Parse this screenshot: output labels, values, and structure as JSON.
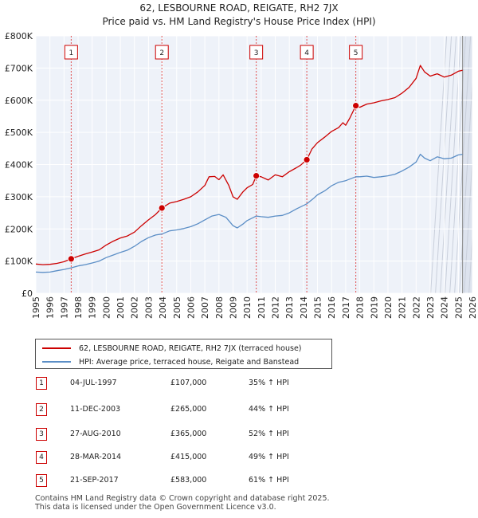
{
  "chart_data": {
    "type": "line",
    "title": "62, LESBOURNE ROAD, REIGATE, RH2 7JX",
    "subtitle": "Price paid vs. HM Land Registry's House Price Index (HPI)",
    "xlim": [
      1995,
      2026
    ],
    "ylim": [
      0,
      800000
    ],
    "x_ticks": [
      "1995",
      "1996",
      "1997",
      "1998",
      "1999",
      "2000",
      "2001",
      "2002",
      "2003",
      "2004",
      "2005",
      "2006",
      "2007",
      "2008",
      "2009",
      "2010",
      "2011",
      "2012",
      "2013",
      "2014",
      "2015",
      "2016",
      "2017",
      "2018",
      "2019",
      "2020",
      "2021",
      "2022",
      "2023",
      "2024",
      "2025",
      "2026"
    ],
    "y_ticks": [
      {
        "value": 0,
        "label": "£0"
      },
      {
        "value": 100000,
        "label": "£100K"
      },
      {
        "value": 200000,
        "label": "£200K"
      },
      {
        "value": 300000,
        "label": "£300K"
      },
      {
        "value": 400000,
        "label": "£400K"
      },
      {
        "value": 500000,
        "label": "£500K"
      },
      {
        "value": 600000,
        "label": "£600K"
      },
      {
        "value": 700000,
        "label": "£700K"
      },
      {
        "value": 800000,
        "label": "£800K"
      }
    ],
    "forecast_start": 2025.3,
    "series": [
      {
        "name": "62, LESBOURNE ROAD, REIGATE, RH2 7JX (terraced house)",
        "color": "#cc0000",
        "points": [
          [
            1995.0,
            91000
          ],
          [
            1995.5,
            89000
          ],
          [
            1996.0,
            90000
          ],
          [
            1996.5,
            93000
          ],
          [
            1997.0,
            98000
          ],
          [
            1997.5,
            107000
          ],
          [
            1998.0,
            115000
          ],
          [
            1998.5,
            122000
          ],
          [
            1999.0,
            128000
          ],
          [
            1999.5,
            135000
          ],
          [
            2000.0,
            150000
          ],
          [
            2000.5,
            162000
          ],
          [
            2001.0,
            172000
          ],
          [
            2001.5,
            178000
          ],
          [
            2002.0,
            190000
          ],
          [
            2002.5,
            210000
          ],
          [
            2003.0,
            228000
          ],
          [
            2003.5,
            245000
          ],
          [
            2003.95,
            265000
          ],
          [
            2004.5,
            280000
          ],
          [
            2005.0,
            285000
          ],
          [
            2005.5,
            292000
          ],
          [
            2006.0,
            300000
          ],
          [
            2006.5,
            315000
          ],
          [
            2007.0,
            335000
          ],
          [
            2007.3,
            362000
          ],
          [
            2007.7,
            363000
          ],
          [
            2008.0,
            353000
          ],
          [
            2008.3,
            368000
          ],
          [
            2008.7,
            335000
          ],
          [
            2009.0,
            300000
          ],
          [
            2009.3,
            292000
          ],
          [
            2009.7,
            315000
          ],
          [
            2010.0,
            328000
          ],
          [
            2010.4,
            338000
          ],
          [
            2010.65,
            365000
          ],
          [
            2011.0,
            362000
          ],
          [
            2011.5,
            352000
          ],
          [
            2012.0,
            368000
          ],
          [
            2012.5,
            362000
          ],
          [
            2013.0,
            378000
          ],
          [
            2013.5,
            390000
          ],
          [
            2013.8,
            398000
          ],
          [
            2014.24,
            415000
          ],
          [
            2014.6,
            448000
          ],
          [
            2015.0,
            468000
          ],
          [
            2015.5,
            485000
          ],
          [
            2016.0,
            503000
          ],
          [
            2016.5,
            515000
          ],
          [
            2016.8,
            530000
          ],
          [
            2017.0,
            522000
          ],
          [
            2017.3,
            545000
          ],
          [
            2017.72,
            583000
          ],
          [
            2018.0,
            578000
          ],
          [
            2018.5,
            588000
          ],
          [
            2019.0,
            592000
          ],
          [
            2019.5,
            598000
          ],
          [
            2020.0,
            602000
          ],
          [
            2020.5,
            608000
          ],
          [
            2021.0,
            622000
          ],
          [
            2021.5,
            640000
          ],
          [
            2022.0,
            668000
          ],
          [
            2022.3,
            708000
          ],
          [
            2022.6,
            688000
          ],
          [
            2023.0,
            675000
          ],
          [
            2023.5,
            682000
          ],
          [
            2024.0,
            672000
          ],
          [
            2024.5,
            678000
          ],
          [
            2025.0,
            690000
          ],
          [
            2025.3,
            693000
          ]
        ]
      },
      {
        "name": "HPI: Average price, terraced house, Reigate and Banstead",
        "color": "#5b8ec6",
        "points": [
          [
            1995.0,
            66000
          ],
          [
            1995.5,
            65000
          ],
          [
            1996.0,
            66000
          ],
          [
            1996.5,
            70000
          ],
          [
            1997.0,
            74000
          ],
          [
            1997.5,
            79000
          ],
          [
            1998.0,
            85000
          ],
          [
            1998.5,
            89000
          ],
          [
            1999.0,
            94000
          ],
          [
            1999.5,
            100000
          ],
          [
            2000.0,
            111000
          ],
          [
            2000.5,
            119000
          ],
          [
            2001.0,
            127000
          ],
          [
            2001.5,
            134000
          ],
          [
            2002.0,
            146000
          ],
          [
            2002.5,
            161000
          ],
          [
            2003.0,
            173000
          ],
          [
            2003.5,
            181000
          ],
          [
            2003.95,
            184000
          ],
          [
            2004.5,
            194000
          ],
          [
            2005.0,
            197000
          ],
          [
            2005.5,
            201000
          ],
          [
            2006.0,
            207000
          ],
          [
            2006.5,
            216000
          ],
          [
            2007.0,
            228000
          ],
          [
            2007.5,
            240000
          ],
          [
            2008.0,
            245000
          ],
          [
            2008.5,
            236000
          ],
          [
            2009.0,
            210000
          ],
          [
            2009.3,
            203000
          ],
          [
            2009.7,
            215000
          ],
          [
            2010.0,
            226000
          ],
          [
            2010.65,
            240000
          ],
          [
            2011.0,
            238000
          ],
          [
            2011.5,
            236000
          ],
          [
            2012.0,
            240000
          ],
          [
            2012.5,
            242000
          ],
          [
            2013.0,
            250000
          ],
          [
            2013.5,
            262000
          ],
          [
            2014.24,
            278000
          ],
          [
            2014.7,
            294000
          ],
          [
            2015.0,
            306000
          ],
          [
            2015.5,
            318000
          ],
          [
            2016.0,
            334000
          ],
          [
            2016.5,
            345000
          ],
          [
            2017.0,
            350000
          ],
          [
            2017.72,
            362000
          ],
          [
            2018.0,
            362000
          ],
          [
            2018.5,
            364000
          ],
          [
            2019.0,
            360000
          ],
          [
            2019.5,
            362000
          ],
          [
            2020.0,
            365000
          ],
          [
            2020.5,
            370000
          ],
          [
            2021.0,
            380000
          ],
          [
            2021.5,
            392000
          ],
          [
            2022.0,
            408000
          ],
          [
            2022.3,
            432000
          ],
          [
            2022.6,
            420000
          ],
          [
            2023.0,
            412000
          ],
          [
            2023.5,
            424000
          ],
          [
            2024.0,
            418000
          ],
          [
            2024.5,
            420000
          ],
          [
            2025.0,
            430000
          ],
          [
            2025.3,
            432000
          ]
        ]
      }
    ],
    "events": [
      {
        "label": "1",
        "x": 1997.51,
        "value": 107000
      },
      {
        "label": "2",
        "x": 2003.95,
        "value": 265000
      },
      {
        "label": "3",
        "x": 2010.65,
        "value": 365000
      },
      {
        "label": "4",
        "x": 2014.24,
        "value": 415000
      },
      {
        "label": "5",
        "x": 2017.72,
        "value": 583000
      }
    ]
  },
  "legend": {
    "items": [
      {
        "label": "62, LESBOURNE ROAD, REIGATE, RH2 7JX (terraced house)",
        "color": "#cc0000"
      },
      {
        "label": "HPI: Average price, terraced house, Reigate and Banstead",
        "color": "#5b8ec6"
      }
    ]
  },
  "transactions": [
    {
      "num": "1",
      "date": "04-JUL-1997",
      "price": "£107,000",
      "hpi": "35% ↑ HPI"
    },
    {
      "num": "2",
      "date": "11-DEC-2003",
      "price": "£265,000",
      "hpi": "44% ↑ HPI"
    },
    {
      "num": "3",
      "date": "27-AUG-2010",
      "price": "£365,000",
      "hpi": "52% ↑ HPI"
    },
    {
      "num": "4",
      "date": "28-MAR-2014",
      "price": "£415,000",
      "hpi": "49% ↑ HPI"
    },
    {
      "num": "5",
      "date": "21-SEP-2017",
      "price": "£583,000",
      "hpi": "61% ↑ HPI"
    }
  ],
  "footer": {
    "line1": "Contains HM Land Registry data © Crown copyright and database right 2025.",
    "line2": "This data is licensed under the Open Government Licence v3.0."
  }
}
